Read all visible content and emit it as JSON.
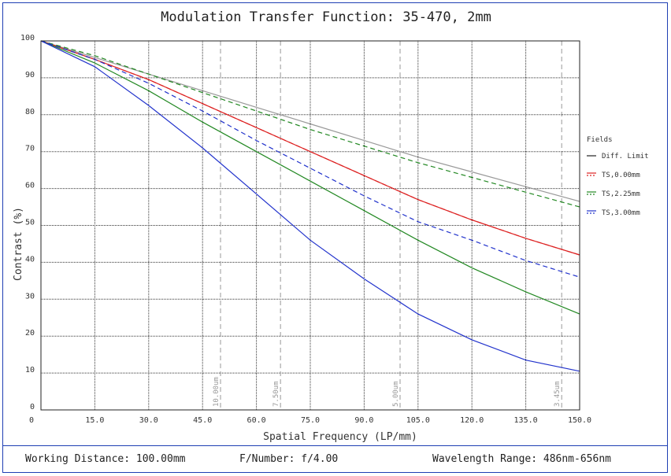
{
  "chart_data": {
    "type": "line",
    "title": "Modulation Transfer Function: 35-470, 2mm",
    "xlabel": "Spatial Frequency (LP/mm)",
    "ylabel": "Contrast (%)",
    "xlim": [
      0,
      150
    ],
    "ylim": [
      0,
      100
    ],
    "x_ticks": [
      "15.0",
      "30.0",
      "45.0",
      "60.0",
      "75.0",
      "90.0",
      "105.0",
      "120.0",
      "135.0",
      "150.0"
    ],
    "y_ticks": [
      "0",
      "10",
      "20",
      "30",
      "40",
      "50",
      "60",
      "70",
      "80",
      "90",
      "100"
    ],
    "grid": true,
    "legend_title": "Fields",
    "legend_position": "right",
    "series": [
      {
        "name": "Diff. Limit",
        "color": "#999999",
        "dashed": false,
        "x": [
          0,
          15,
          30,
          45,
          60,
          75,
          90,
          105,
          120,
          135,
          150
        ],
        "y": [
          100,
          95.5,
          91,
          86.5,
          82,
          77.5,
          73,
          68.5,
          64.5,
          60.5,
          56.5
        ]
      },
      {
        "name": "TS,0.00mm",
        "color": "#dd2222",
        "dashed": false,
        "x": [
          0,
          15,
          30,
          45,
          60,
          75,
          90,
          105,
          120,
          135,
          150
        ],
        "y": [
          100,
          95,
          89.5,
          83,
          76.5,
          70,
          63.5,
          57,
          51.5,
          46.5,
          42
        ]
      },
      {
        "name": "TS,0.00mm",
        "color": "#dd2222",
        "dashed": true,
        "x": [
          0,
          15,
          30,
          45,
          60,
          75,
          90,
          105,
          120,
          135,
          150
        ],
        "y": [
          100,
          95,
          89.5,
          83,
          76.5,
          70,
          63.5,
          57,
          51.5,
          46.5,
          42
        ]
      },
      {
        "name": "TS,2.25mm",
        "color": "#228822",
        "dashed": false,
        "x": [
          0,
          15,
          30,
          45,
          60,
          75,
          90,
          105,
          120,
          135,
          150
        ],
        "y": [
          100,
          94,
          86.5,
          78,
          70,
          62,
          54,
          46,
          38.5,
          32,
          26
        ]
      },
      {
        "name": "TS,2.25mm",
        "color": "#228822",
        "dashed": true,
        "x": [
          0,
          15,
          30,
          45,
          60,
          75,
          90,
          105,
          120,
          135,
          150
        ],
        "y": [
          100,
          96,
          91,
          86,
          81,
          76,
          71.5,
          67,
          63,
          59,
          55
        ]
      },
      {
        "name": "TS,3.00mm",
        "color": "#2233cc",
        "dashed": false,
        "x": [
          0,
          15,
          30,
          45,
          60,
          75,
          90,
          105,
          120,
          135,
          150
        ],
        "y": [
          100,
          93,
          82.5,
          71,
          58.5,
          46,
          35.5,
          26,
          19,
          13.5,
          10.5
        ]
      },
      {
        "name": "TS,3.00mm",
        "color": "#2233cc",
        "dashed": true,
        "x": [
          0,
          15,
          30,
          45,
          60,
          75,
          90,
          105,
          120,
          135,
          150
        ],
        "y": [
          100,
          95,
          88.5,
          81,
          73,
          65.5,
          58,
          51,
          46,
          40.5,
          36
        ]
      }
    ],
    "legend": [
      {
        "label": "Diff. Limit",
        "color": "#222222"
      },
      {
        "label": "TS,0.00mm",
        "color": "#dd2222"
      },
      {
        "label": "TS,2.25mm",
        "color": "#228822"
      },
      {
        "label": "TS,3.00mm",
        "color": "#2233cc"
      }
    ],
    "markers": [
      {
        "x": 50,
        "label": "10.00um"
      },
      {
        "x": 66.7,
        "label": "7.50um"
      },
      {
        "x": 100,
        "label": "5.00um"
      },
      {
        "x": 145,
        "label": "3.45um"
      }
    ]
  },
  "footer": {
    "working_distance": "Working Distance: 100.00mm",
    "f_number": "F/Number: f/4.00",
    "wavelength": "Wavelength Range: 486nm-656nm"
  }
}
